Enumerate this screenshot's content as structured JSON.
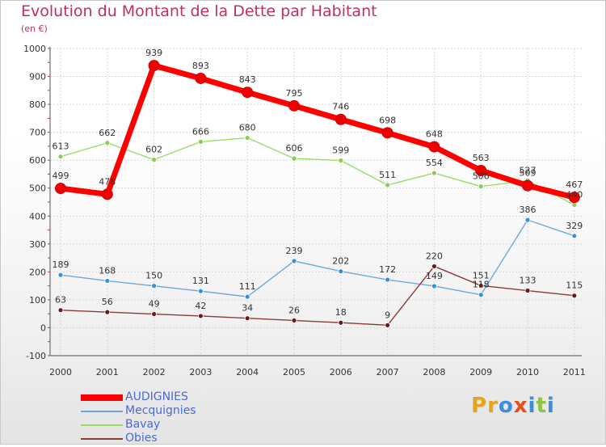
{
  "title": "Evolution du Montant de la Dette par Habitant",
  "subtitle": "(en €)",
  "logo": {
    "text": "Proxiti",
    "letter_colors": [
      "#e8a21c",
      "#e8a21c",
      "#3a8fd8",
      "#e84e1c",
      "#3a8fd8",
      "#8cc63f",
      "#3a8fd8"
    ]
  },
  "chart_data": {
    "type": "line",
    "title": "Evolution du Montant de la Dette par Habitant",
    "subtitle": "(en €)",
    "xlabel": "",
    "ylabel": "",
    "ylim": [
      -100,
      1000
    ],
    "yticks": [
      -100,
      0,
      100,
      200,
      300,
      400,
      500,
      600,
      700,
      800,
      900,
      1000
    ],
    "x": [
      "2000",
      "2001",
      "2002",
      "2003",
      "2004",
      "2005",
      "2006",
      "2007",
      "2008",
      "2009",
      "2010",
      "2011"
    ],
    "grid": true,
    "legend_position": "bottom-left",
    "series": [
      {
        "name": "AUDIGNIES",
        "color": "#ff0000",
        "thick": true,
        "values": [
          499,
          478,
          939,
          893,
          843,
          795,
          746,
          698,
          648,
          563,
          509,
          467
        ],
        "labels": [
          "499",
          "478",
          "939",
          "893",
          "843",
          "795",
          "746",
          "698",
          "648",
          "563",
          "509",
          "467"
        ]
      },
      {
        "name": "Mecquignies",
        "color": "#6fa8d8",
        "marker": "#3a8fd8",
        "thick": false,
        "values": [
          189,
          168,
          150,
          131,
          111,
          239,
          202,
          172,
          149,
          118,
          386,
          329
        ],
        "labels": [
          "189",
          "168",
          "150",
          "131",
          "111",
          "239",
          "202",
          "172",
          "149",
          "118",
          "386",
          "329"
        ]
      },
      {
        "name": "Bavay",
        "color": "#99dd66",
        "marker": "#88cc55",
        "thick": false,
        "values": [
          613,
          662,
          602,
          666,
          680,
          606,
          599,
          511,
          554,
          506,
          527,
          440
        ],
        "labels": [
          "613",
          "662",
          "602",
          "666",
          "680",
          "606",
          "599",
          "511",
          "554",
          "506",
          "527",
          "440"
        ]
      },
      {
        "name": "Obies",
        "color": "#8b3a3a",
        "marker": "#6b1a1a",
        "thick": false,
        "values": [
          63,
          56,
          49,
          42,
          34,
          26,
          18,
          9,
          220,
          151,
          133,
          115
        ],
        "labels": [
          "63",
          "56",
          "49",
          "42",
          "34",
          "26",
          "18",
          "9",
          "220",
          "151",
          "133",
          "115"
        ]
      }
    ]
  }
}
